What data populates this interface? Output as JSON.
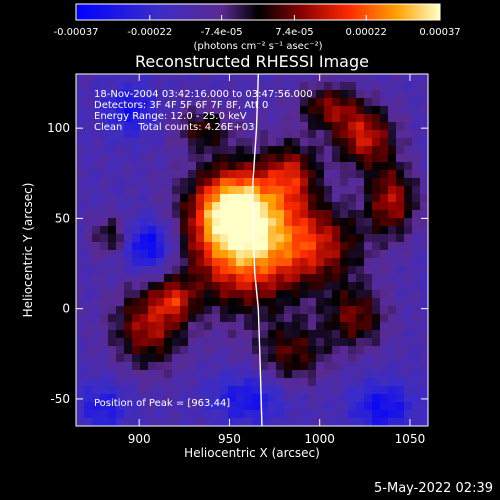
{
  "colorbar": {
    "tick_labels": [
      "-0.00037",
      "-0.00022",
      "-7.4e-05",
      "7.4e-05",
      "0.00022",
      "0.00037"
    ],
    "tick_values": [
      -0.00037,
      -0.00022,
      -7.4e-05,
      7.4e-05,
      0.00022,
      0.00037
    ],
    "range": [
      -0.00037,
      0.00037
    ],
    "units_label": "(photons cm⁻² s⁻¹ asec⁻²)"
  },
  "chart_data": {
    "type": "heatmap",
    "title": "Reconstructed RHESSI Image",
    "xlabel": "Heliocentric X (arcsec)",
    "ylabel": "Heliocentric Y (arcsec)",
    "xlim": [
      865,
      1060
    ],
    "ylim": [
      -65,
      130
    ],
    "x_ticks": [
      900,
      950,
      1000,
      1050
    ],
    "y_ticks": [
      -50,
      0,
      50,
      100
    ],
    "annotations": [
      "18-Nov-2004 03:42:16.000 to 03:47:56.000",
      "Detectors: 3F 4F 5F 6F 7F 8F, Att 0",
      "Energy Range: 12.0 - 25.0 keV",
      "Clean     Total counts: 4.26E+03"
    ],
    "peak_label": "Position of Peak = [963,44]",
    "peak": {
      "x": 963,
      "y": 44
    },
    "limb_line": [
      [
        966,
        130
      ],
      [
        965,
        100
      ],
      [
        963,
        70
      ],
      [
        963,
        44
      ],
      [
        964,
        20
      ],
      [
        966,
        0
      ],
      [
        967,
        -30
      ],
      [
        968,
        -65
      ]
    ],
    "sources": [
      {
        "x": 958,
        "y": 40,
        "sigma_x": 22,
        "sigma_y": 26,
        "amp": 1.0
      },
      {
        "x": 952,
        "y": 55,
        "sigma_x": 14,
        "sigma_y": 14,
        "amp": 0.55
      },
      {
        "x": 1025,
        "y": 95,
        "sigma_x": 12,
        "sigma_y": 12,
        "amp": 0.6
      },
      {
        "x": 1005,
        "y": 112,
        "sigma_x": 12,
        "sigma_y": 9,
        "amp": 0.45
      },
      {
        "x": 1040,
        "y": 60,
        "sigma_x": 10,
        "sigma_y": 14,
        "amp": 0.55
      },
      {
        "x": 1000,
        "y": 35,
        "sigma_x": 18,
        "sigma_y": 16,
        "amp": 0.5
      },
      {
        "x": 985,
        "y": 75,
        "sigma_x": 10,
        "sigma_y": 12,
        "amp": 0.45
      },
      {
        "x": 985,
        "y": -25,
        "sigma_x": 14,
        "sigma_y": 12,
        "amp": 0.4
      },
      {
        "x": 1020,
        "y": -5,
        "sigma_x": 12,
        "sigma_y": 12,
        "amp": 0.45
      },
      {
        "x": 905,
        "y": -10,
        "sigma_x": 14,
        "sigma_y": 16,
        "amp": 0.55
      },
      {
        "x": 920,
        "y": 5,
        "sigma_x": 8,
        "sigma_y": 8,
        "amp": 0.4
      },
      {
        "x": 885,
        "y": 40,
        "sigma_x": 8,
        "sigma_y": 8,
        "amp": 0.35
      },
      {
        "x": 935,
        "y": 100,
        "sigma_x": 10,
        "sigma_y": 8,
        "amp": 0.35
      },
      {
        "x": 895,
        "y": 110,
        "sigma_x": 10,
        "sigma_y": 10,
        "amp": -0.35
      },
      {
        "x": 905,
        "y": 35,
        "sigma_x": 10,
        "sigma_y": 10,
        "amp": -0.5
      },
      {
        "x": 1035,
        "y": -55,
        "sigma_x": 12,
        "sigma_y": 10,
        "amp": -0.4
      },
      {
        "x": 960,
        "y": -50,
        "sigma_x": 14,
        "sigma_y": 10,
        "amp": -0.35
      },
      {
        "x": 880,
        "y": -55,
        "sigma_x": 10,
        "sigma_y": 10,
        "amp": -0.3
      }
    ]
  },
  "footer": {
    "date": "5-May-2022 02:39"
  }
}
